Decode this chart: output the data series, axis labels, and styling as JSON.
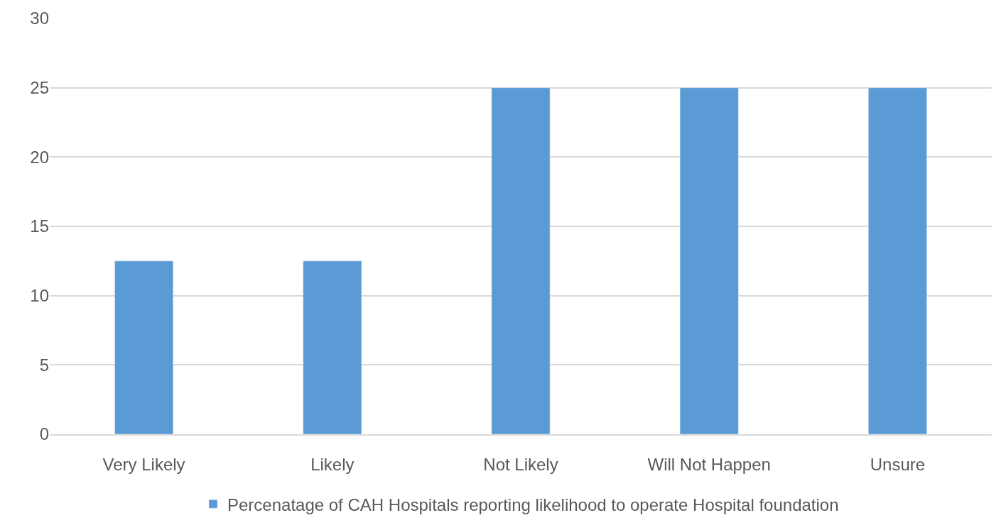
{
  "chart_data": {
    "type": "bar",
    "categories": [
      "Very Likely",
      "Likely",
      "Not Likely",
      "Will Not Happen",
      "Unsure"
    ],
    "series": [
      {
        "name": "Percenatage of CAH Hospitals reporting likelihood to operate Hospital foundation",
        "color": "#5b9bd5",
        "values": [
          12.5,
          12.5,
          25,
          25,
          25
        ]
      }
    ],
    "ylim": [
      0,
      30
    ],
    "yticks": [
      0,
      5,
      10,
      15,
      20,
      25,
      30
    ],
    "grid": "y",
    "legend": "bottom"
  }
}
